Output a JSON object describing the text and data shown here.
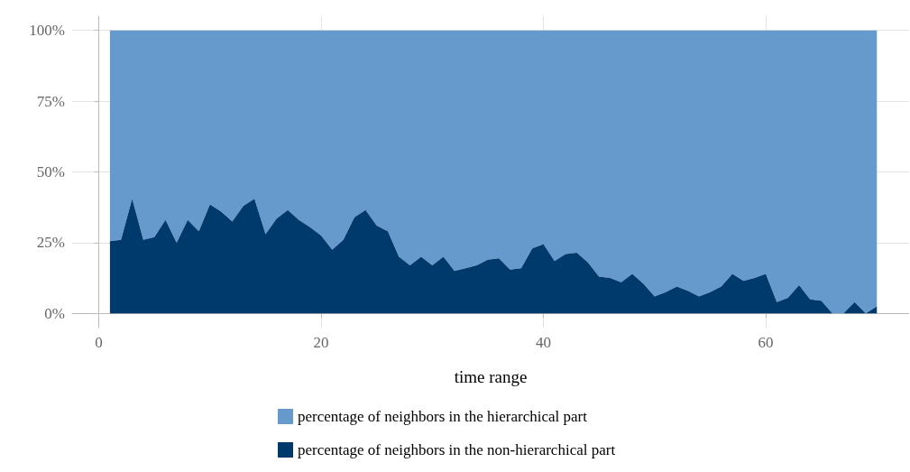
{
  "chart_data": {
    "type": "area",
    "stacked": true,
    "xlabel": "time range",
    "legend": "bottom",
    "grid": true,
    "marker": "none",
    "x": [
      1,
      2,
      3,
      4,
      5,
      6,
      7,
      8,
      9,
      10,
      11,
      12,
      13,
      14,
      15,
      16,
      17,
      18,
      19,
      20,
      21,
      22,
      23,
      24,
      25,
      26,
      27,
      28,
      29,
      30,
      31,
      32,
      33,
      34,
      35,
      36,
      37,
      38,
      39,
      40,
      41,
      42,
      43,
      44,
      45,
      46,
      47,
      48,
      49,
      50,
      51,
      52,
      53,
      54,
      55,
      56,
      57,
      58,
      59,
      60,
      61,
      62,
      63,
      64,
      65,
      66,
      67,
      68,
      69,
      70
    ],
    "xlim": [
      -2.4,
      72.9
    ],
    "xticks": [
      0,
      20,
      40,
      60
    ],
    "ylim": [
      -5,
      105
    ],
    "yticks": [
      {
        "value": 0,
        "label": "0%"
      },
      {
        "value": 25,
        "label": "25%"
      },
      {
        "value": 50,
        "label": "50%"
      },
      {
        "value": 75,
        "label": "75%"
      },
      {
        "value": 100,
        "label": "100%"
      }
    ],
    "series": [
      {
        "name": "percentage of neighbors in the non-hierarchical part",
        "color": "#003a6c",
        "values": [
          25.5,
          26,
          40.5,
          26,
          27,
          33,
          25,
          33,
          29,
          38.5,
          36,
          32.5,
          38,
          40.5,
          28,
          33.5,
          36.5,
          33,
          30.5,
          27.5,
          22.5,
          26,
          34,
          36.5,
          31,
          29,
          20,
          17,
          20,
          17,
          20,
          15,
          16,
          17,
          19,
          19.5,
          15.5,
          16,
          23,
          24.5,
          18.5,
          21,
          21.5,
          18,
          13,
          12.5,
          11,
          14,
          10.5,
          6,
          7.5,
          9.5,
          8,
          6,
          7.5,
          9.5,
          14,
          11.5,
          12.5,
          14,
          4,
          5.5,
          10,
          5,
          4.5,
          0,
          0,
          4,
          0,
          2.5
        ]
      },
      {
        "name": "percentage of neighbors in the hierarchical part",
        "color": "#6699cc",
        "values": [
          74.5,
          74,
          59.5,
          74,
          73,
          67,
          75,
          67,
          71,
          61.5,
          64,
          67.5,
          62,
          59.5,
          72,
          66.5,
          63.5,
          67,
          69.5,
          72.5,
          77.5,
          74,
          66,
          63.5,
          69,
          71,
          80,
          83,
          80,
          83,
          80,
          85,
          84,
          83,
          81,
          80.5,
          84.5,
          84,
          77,
          75.5,
          81.5,
          79,
          78.5,
          82,
          87,
          87.5,
          89,
          86,
          89.5,
          94,
          92.5,
          90.5,
          92,
          94,
          92.5,
          90.5,
          86,
          88.5,
          87.5,
          86,
          96,
          94.5,
          90,
          95,
          95.5,
          100,
          100,
          96,
          100,
          97.5
        ]
      }
    ]
  }
}
